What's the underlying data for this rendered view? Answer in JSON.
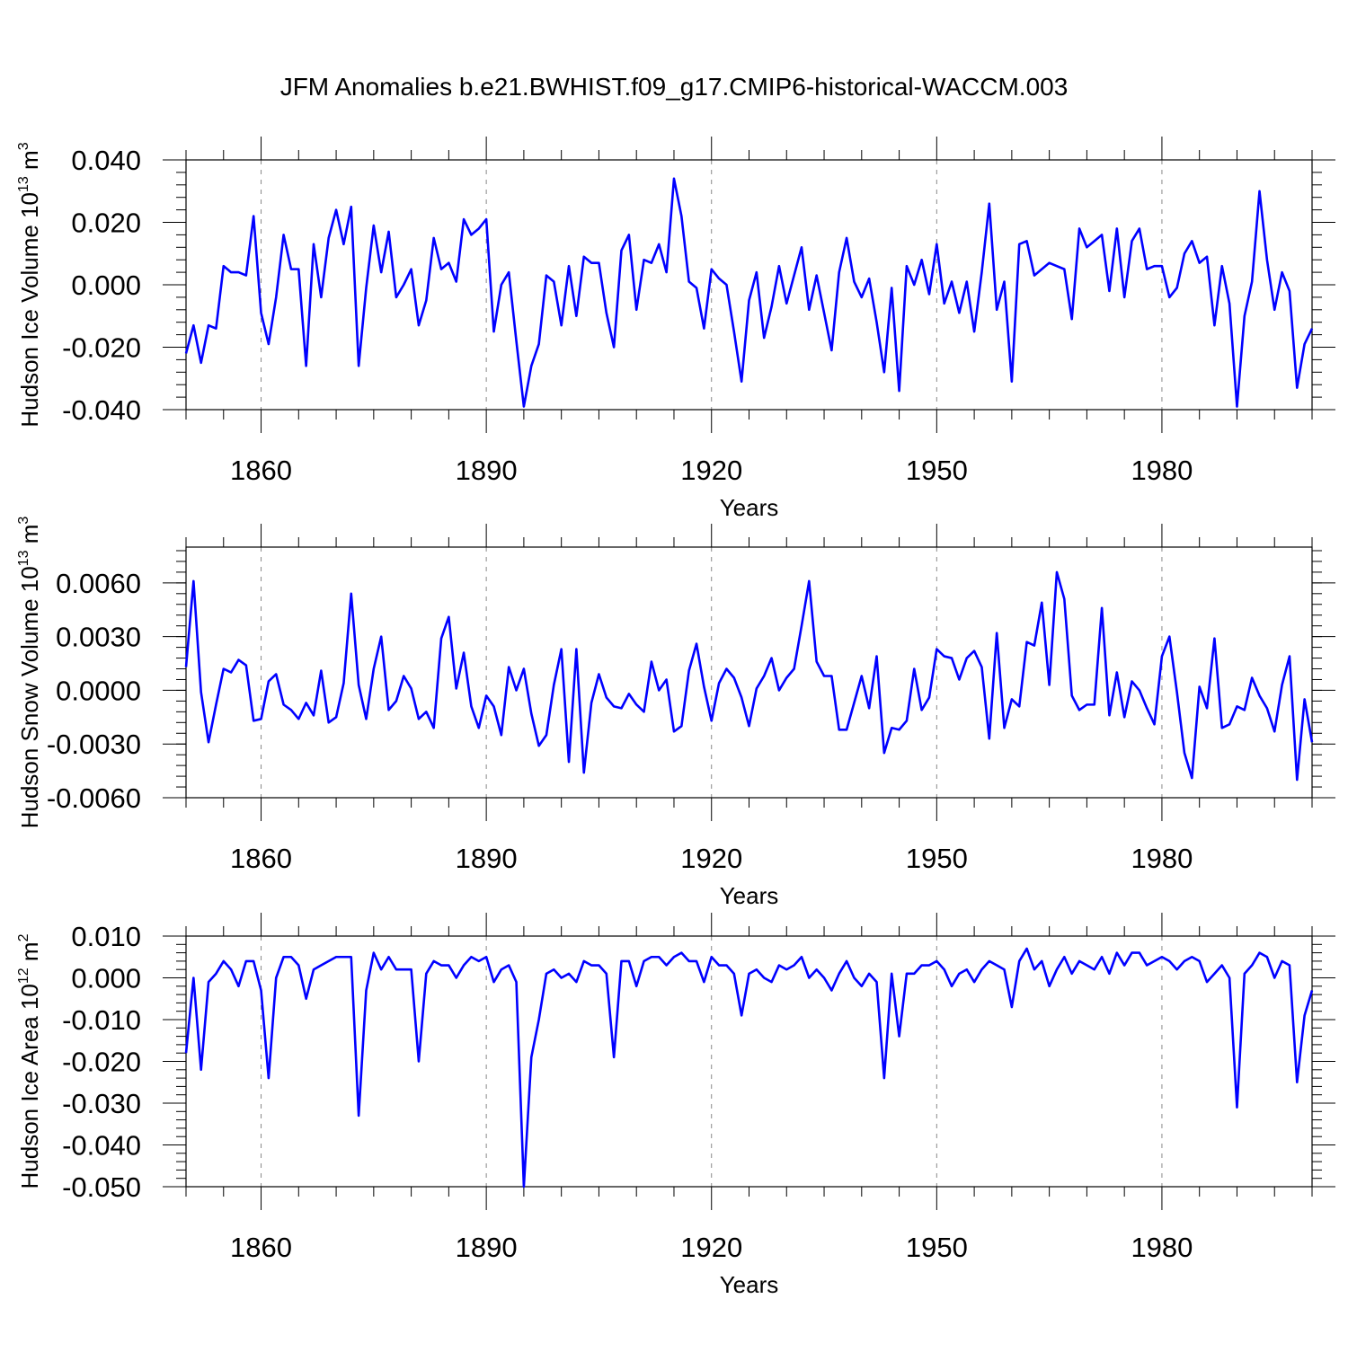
{
  "chart_data": {
    "type": "line",
    "title": "JFM Anomalies b.e21.BWHIST.f09_g17.CMIP6-historical-WACCM.003",
    "colors": {
      "line": "#0000ff",
      "frame": "#000000",
      "grid": "#888888"
    },
    "x_start_year": 1850,
    "x_range": [
      1850,
      2000
    ],
    "x_ticks": [
      1860,
      1890,
      1920,
      1950,
      1980
    ],
    "x_tick_labels": [
      "1860",
      "1890",
      "1920",
      "1950",
      "1980"
    ],
    "panels": [
      {
        "id": "ice-volume",
        "xlabel": "Years",
        "ylabel": {
          "text": "Hudson Ice Volume 10",
          "exp": "13",
          "unit": " m",
          "unit_exp": "3"
        },
        "ylim": [
          -0.04,
          0.04
        ],
        "y_ticks": [
          -0.04,
          -0.02,
          0.0,
          0.02,
          0.04
        ],
        "y_tick_labels": [
          "-0.040",
          "-0.020",
          "0.000",
          "0.020",
          "0.040"
        ],
        "values": [
          -0.022,
          -0.013,
          -0.025,
          -0.013,
          -0.014,
          0.006,
          0.004,
          0.004,
          0.003,
          0.022,
          -0.009,
          -0.019,
          -0.004,
          0.016,
          0.005,
          0.005,
          -0.026,
          0.013,
          -0.004,
          0.015,
          0.024,
          0.013,
          0.025,
          -0.026,
          -0.001,
          0.019,
          0.004,
          0.017,
          -0.004,
          0.0,
          0.005,
          -0.013,
          -0.005,
          0.015,
          0.005,
          0.007,
          0.001,
          0.021,
          0.016,
          0.018,
          0.021,
          -0.015,
          0.0,
          0.004,
          -0.018,
          -0.039,
          -0.026,
          -0.019,
          0.003,
          0.001,
          -0.013,
          0.006,
          -0.01,
          0.009,
          0.007,
          0.007,
          -0.009,
          -0.02,
          0.011,
          0.016,
          -0.008,
          0.008,
          0.007,
          0.013,
          0.004,
          0.034,
          0.022,
          0.001,
          -0.001,
          -0.014,
          0.005,
          0.002,
          0.0,
          -0.015,
          -0.031,
          -0.005,
          0.004,
          -0.017,
          -0.007,
          0.006,
          -0.006,
          0.003,
          0.012,
          -0.008,
          0.003,
          -0.009,
          -0.021,
          0.004,
          0.015,
          0.001,
          -0.004,
          0.002,
          -0.012,
          -0.028,
          -0.001,
          -0.034,
          0.006,
          0.0,
          0.008,
          -0.003,
          0.013,
          -0.006,
          0.001,
          -0.009,
          0.001,
          -0.015,
          0.004,
          0.026,
          -0.008,
          0.001,
          -0.031,
          0.013,
          0.014,
          0.003,
          0.005,
          0.007,
          0.006,
          0.005,
          -0.011,
          0.018,
          0.012,
          0.014,
          0.016,
          -0.002,
          0.018,
          -0.004,
          0.014,
          0.018,
          0.005,
          0.006,
          0.006,
          -0.004,
          -0.001,
          0.01,
          0.014,
          0.007,
          0.009,
          -0.013,
          0.006,
          -0.006,
          -0.039,
          -0.01,
          0.001,
          0.03,
          0.008,
          -0.008,
          0.004,
          -0.002,
          -0.033,
          -0.019,
          -0.014
        ]
      },
      {
        "id": "snow-volume",
        "xlabel": "Years",
        "ylabel": {
          "text": "Hudson Snow Volume 10",
          "exp": "13",
          "unit": " m",
          "unit_exp": "3"
        },
        "ylim": [
          -0.006,
          0.008
        ],
        "y_ticks": [
          -0.006,
          -0.003,
          0.0,
          0.003,
          0.006
        ],
        "y_tick_labels": [
          "-0.0060",
          "-0.0030",
          "0.0000",
          "0.0030",
          "0.0060"
        ],
        "values": [
          0.0013,
          0.0061,
          -0.0001,
          -0.0029,
          -0.0008,
          0.0012,
          0.001,
          0.0017,
          0.0014,
          -0.0017,
          -0.0016,
          0.0005,
          0.0009,
          -0.0008,
          -0.0011,
          -0.0016,
          -0.0007,
          -0.0014,
          0.0011,
          -0.0018,
          -0.0015,
          0.0004,
          0.0054,
          0.0003,
          -0.0016,
          0.0012,
          0.003,
          -0.0011,
          -0.0006,
          0.0008,
          0.0001,
          -0.0016,
          -0.0012,
          -0.0021,
          0.0029,
          0.0041,
          0.0001,
          0.0021,
          -0.0009,
          -0.0021,
          -0.0003,
          -0.0009,
          -0.0025,
          0.0013,
          0.0,
          0.0012,
          -0.0013,
          -0.0031,
          -0.0025,
          0.0003,
          0.0023,
          -0.004,
          0.0023,
          -0.0046,
          -0.0007,
          0.0009,
          -0.0004,
          -0.0009,
          -0.001,
          -0.0002,
          -0.0008,
          -0.0012,
          0.0016,
          0.0,
          0.0006,
          -0.0023,
          -0.002,
          0.0011,
          0.0026,
          0.0002,
          -0.0017,
          0.0004,
          0.0012,
          0.0007,
          -0.0004,
          -0.002,
          0.0001,
          0.0008,
          0.0018,
          0.0,
          0.0007,
          0.0012,
          0.0036,
          0.0061,
          0.0016,
          0.0008,
          0.0008,
          -0.0022,
          -0.0022,
          -0.0007,
          0.0008,
          -0.001,
          0.0019,
          -0.0035,
          -0.0021,
          -0.0022,
          -0.0017,
          0.0012,
          -0.0011,
          -0.0004,
          0.0023,
          0.0019,
          0.0018,
          0.0006,
          0.0018,
          0.0022,
          0.0013,
          -0.0027,
          0.0032,
          -0.0021,
          -0.0005,
          -0.0009,
          0.0027,
          0.0025,
          0.0049,
          0.0003,
          0.0066,
          0.0051,
          -0.0003,
          -0.0011,
          -0.0008,
          -0.0008,
          0.0046,
          -0.0014,
          0.001,
          -0.0015,
          0.0005,
          0.0,
          -0.001,
          -0.0019,
          0.0019,
          0.003,
          -0.0001,
          -0.0035,
          -0.0049,
          0.0002,
          -0.001,
          0.0029,
          -0.0021,
          -0.0019,
          -0.0009,
          -0.0011,
          0.0007,
          -0.0003,
          -0.001,
          -0.0023,
          0.0003,
          0.0019,
          -0.005,
          -0.0005,
          -0.0029
        ]
      },
      {
        "id": "ice-area",
        "xlabel": "Years",
        "ylabel": {
          "text": "Hudson Ice Area 10",
          "exp": "12",
          "unit": " m",
          "unit_exp": "2"
        },
        "ylim": [
          -0.05,
          0.01
        ],
        "y_ticks": [
          -0.05,
          -0.04,
          -0.03,
          -0.02,
          -0.01,
          0.0,
          0.01
        ],
        "y_tick_labels": [
          "-0.050",
          "-0.040",
          "-0.030",
          "-0.020",
          "-0.010",
          "0.000",
          "0.010"
        ],
        "values": [
          -0.018,
          0.0,
          -0.022,
          -0.001,
          0.001,
          0.004,
          0.002,
          -0.002,
          0.004,
          0.004,
          -0.003,
          -0.024,
          0.0,
          0.005,
          0.005,
          0.003,
          -0.005,
          0.002,
          0.003,
          0.004,
          0.005,
          0.005,
          0.005,
          -0.033,
          -0.003,
          0.006,
          0.002,
          0.005,
          0.002,
          0.002,
          0.002,
          -0.02,
          0.001,
          0.004,
          0.003,
          0.003,
          0.0,
          0.003,
          0.005,
          0.004,
          0.005,
          -0.001,
          0.002,
          0.003,
          -0.001,
          -0.05,
          -0.019,
          -0.01,
          0.001,
          0.002,
          0.0,
          0.001,
          -0.001,
          0.004,
          0.003,
          0.003,
          0.001,
          -0.019,
          0.004,
          0.004,
          -0.002,
          0.004,
          0.005,
          0.005,
          0.003,
          0.005,
          0.006,
          0.004,
          0.004,
          -0.001,
          0.005,
          0.003,
          0.003,
          0.001,
          -0.009,
          0.001,
          0.002,
          0.0,
          -0.001,
          0.003,
          0.002,
          0.003,
          0.005,
          0.0,
          0.002,
          0.0,
          -0.003,
          0.001,
          0.004,
          0.0,
          -0.002,
          0.001,
          -0.001,
          -0.024,
          0.001,
          -0.014,
          0.001,
          0.001,
          0.003,
          0.003,
          0.004,
          0.002,
          -0.002,
          0.001,
          0.002,
          -0.001,
          0.002,
          0.004,
          0.003,
          0.002,
          -0.007,
          0.004,
          0.007,
          0.002,
          0.004,
          -0.002,
          0.002,
          0.005,
          0.001,
          0.004,
          0.003,
          0.002,
          0.005,
          0.001,
          0.006,
          0.003,
          0.006,
          0.006,
          0.003,
          0.004,
          0.005,
          0.004,
          0.002,
          0.004,
          0.005,
          0.004,
          -0.001,
          0.001,
          0.003,
          0.0,
          -0.031,
          0.001,
          0.003,
          0.006,
          0.005,
          0.0,
          0.004,
          0.003,
          -0.025,
          -0.009,
          -0.003
        ]
      }
    ]
  }
}
